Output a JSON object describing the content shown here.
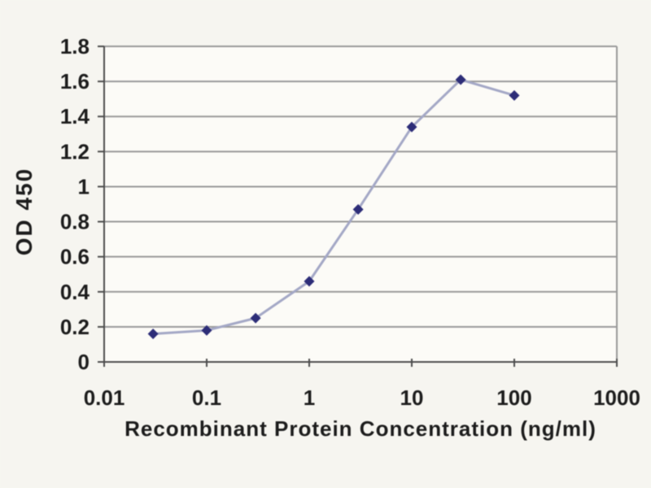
{
  "figure": {
    "kind": "elisa-standard-curve",
    "background": "#f6f5f0"
  },
  "chart_data": {
    "type": "line",
    "x_scale": "log",
    "x": [
      0.03,
      0.1,
      0.3,
      1,
      3,
      10,
      30,
      100
    ],
    "values": [
      0.16,
      0.18,
      0.25,
      0.46,
      0.87,
      1.34,
      1.61,
      1.52
    ],
    "title": "",
    "xlabel": "Recombinant Protein Concentration (ng/ml)",
    "ylabel": "OD 450",
    "xlim": [
      0.01,
      1000
    ],
    "ylim": [
      0,
      1.8
    ],
    "x_ticks": [
      0.01,
      0.1,
      1,
      10,
      100,
      1000
    ],
    "x_tick_labels": [
      "0.01",
      "0.1",
      "1",
      "10",
      "100",
      "1000"
    ],
    "y_tick_step": 0.2,
    "y_ticks": [
      0,
      0.2,
      0.4,
      0.6,
      0.8,
      1,
      1.2,
      1.4,
      1.6,
      1.8
    ],
    "y_tick_labels": [
      "0",
      "0.2",
      "0.4",
      "0.6",
      "0.8",
      "1",
      "1.2",
      "1.4",
      "1.6",
      "1.8"
    ],
    "grid": "horizontal",
    "legend": "none",
    "marker": "diamond",
    "colors": {
      "marker": "#2d2d78",
      "line": "#a4a8c6",
      "grid": "#999999",
      "axis": "#4d4d4d",
      "plot_border": "#999999",
      "text": "#1c1c1c",
      "plot_bg": "#fcfbf7",
      "page_bg": "#f6f5f0"
    }
  }
}
